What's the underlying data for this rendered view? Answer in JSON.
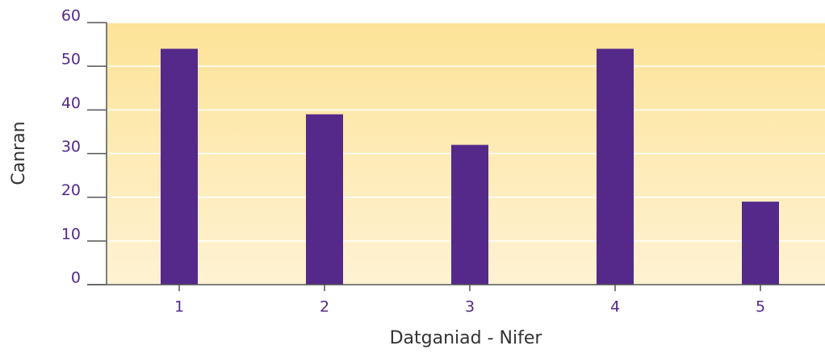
{
  "chart_data": {
    "type": "bar",
    "categories": [
      "1",
      "2",
      "3",
      "4",
      "5"
    ],
    "values": [
      54,
      39,
      32,
      54,
      19
    ],
    "color": "#55298a",
    "xlabel": "Datganiad - Nifer",
    "ylabel": "Canran",
    "ylim": [
      0,
      60
    ],
    "yticks": [
      0,
      10,
      20,
      30,
      40,
      50,
      60
    ],
    "grid": true
  }
}
